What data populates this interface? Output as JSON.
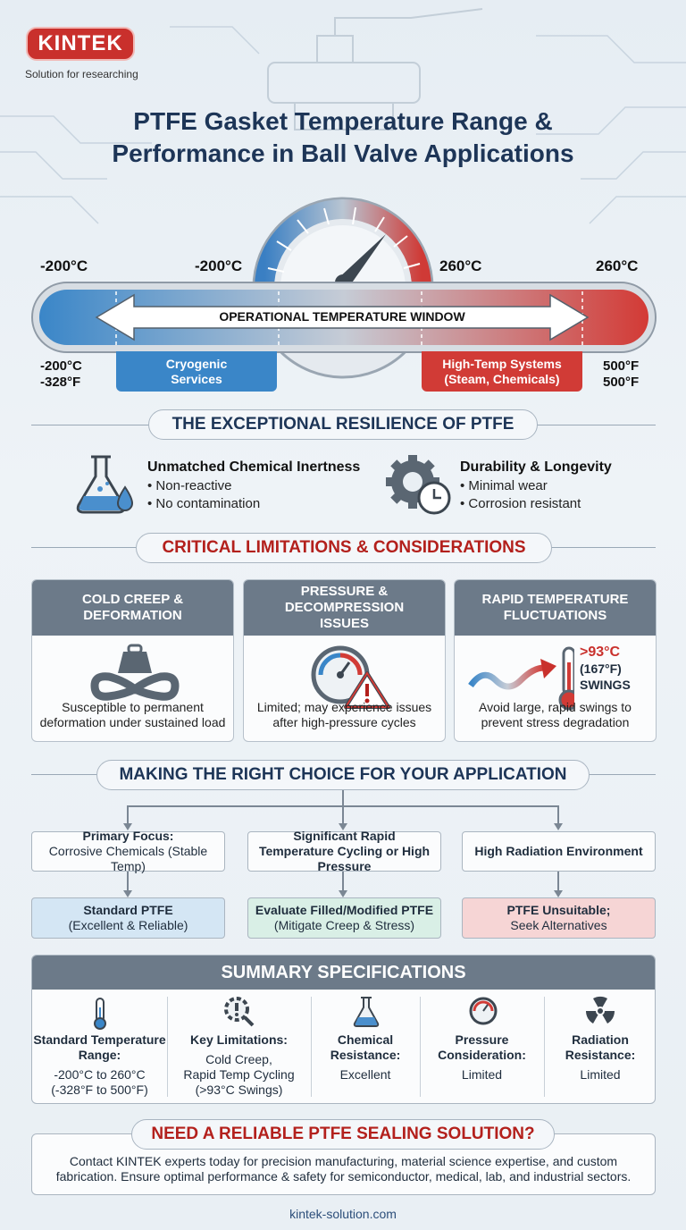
{
  "brand": {
    "name": "KINTEK",
    "tagline": "Solution for researching"
  },
  "title": "PTFE Gasket Temperature Range & Performance in Ball Valve Applications",
  "temperature_bar": {
    "top_labels": [
      "-200°C",
      "-200°C",
      "260°C",
      "260°C"
    ],
    "window_label": "OPERATIONAL TEMPERATURE WINDOW",
    "left_labels": [
      "-200°C",
      "-328°F"
    ],
    "right_labels": [
      "500°F",
      "500°F"
    ],
    "cryogenic": "Cryogenic Services",
    "high_temp": "High-Temp Systems (Steam, Chemicals)"
  },
  "resilience": {
    "heading": "THE EXCEPTIONAL RESILIENCE OF PTFE",
    "items": [
      {
        "title": "Unmatched Chemical Inertness",
        "points": [
          "Non-reactive",
          "No contamination"
        ]
      },
      {
        "title": "Durability & Longevity",
        "points": [
          "Minimal wear",
          "Corrosion resistant"
        ]
      }
    ]
  },
  "limitations": {
    "heading": "CRITICAL LIMITATIONS & CONSIDERATIONS",
    "cards": [
      {
        "title": "COLD CREEP & DEFORMATION",
        "text": "Susceptible to permanent deformation under sustained load"
      },
      {
        "title": "PRESSURE & DECOMPRESSION ISSUES",
        "text": "Limited; may experience issues after high-pressure cycles"
      },
      {
        "title": "RAPID TEMPERATURE FLUCTUATIONS",
        "text": "Avoid large, rapid swings to prevent stress degradation",
        "badge": [
          ">93°C",
          "(167°F)",
          "SWINGS"
        ]
      }
    ]
  },
  "choice": {
    "heading": "MAKING THE RIGHT CHOICE FOR YOUR APPLICATION",
    "options": [
      {
        "condition_title": "Primary Focus:",
        "condition": "Corrosive Chemicals (Stable Temp)",
        "result": "Standard PTFE",
        "result_note": "(Excellent & Reliable)"
      },
      {
        "condition": "Significant Rapid Temperature Cycling or High Pressure",
        "result": "Evaluate Filled/Modified PTFE",
        "result_note": "(Mitigate Creep & Stress)"
      },
      {
        "condition": "High Radiation Environment",
        "result": "PTFE Unsuitable;",
        "result_note": "Seek Alternatives"
      }
    ]
  },
  "summary": {
    "heading": "SUMMARY SPECIFICATIONS",
    "items": [
      {
        "label": "Standard Temperature Range:",
        "lines": [
          "-200°C to 260°C",
          "(-328°F to 500°F)"
        ]
      },
      {
        "label": "Key Limitations:",
        "lines": [
          "Cold Creep,",
          "Rapid Temp Cycling",
          "(>93°C Swings)"
        ]
      },
      {
        "label": "Chemical Resistance:",
        "lines": [
          "Excellent"
        ]
      },
      {
        "label": "Pressure Consideration:",
        "lines": [
          "Limited"
        ]
      },
      {
        "label": "Radiation Resistance:",
        "lines": [
          "Limited"
        ]
      }
    ]
  },
  "cta": {
    "heading": "NEED A RELIABLE PTFE SEALING SOLUTION?",
    "text": "Contact KINTEK experts today for precision manufacturing, material science expertise, and custom fabrication. Ensure optimal performance & safety for semiconductor, medical, lab, and industrial sectors.",
    "url": "kintek-solution.com"
  }
}
